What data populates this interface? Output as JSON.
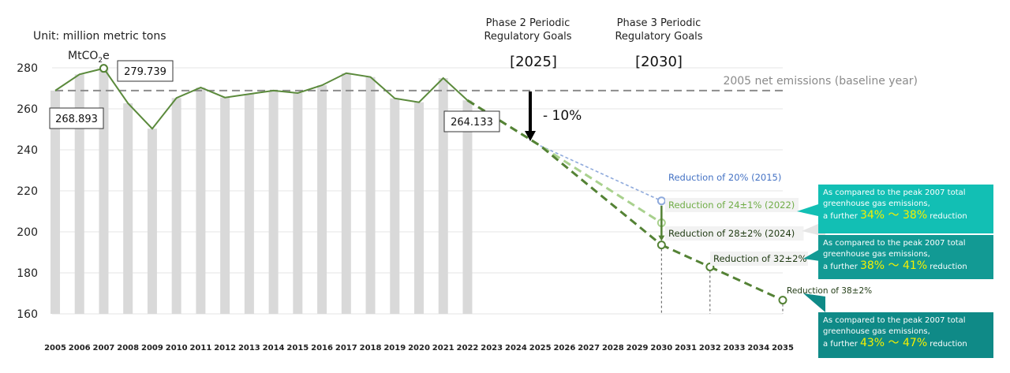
{
  "chart_data": {
    "type": "bar",
    "unit_label": "Unit: million metric tons",
    "unit_sub_prefix": "MtCO",
    "unit_sub_num": "2",
    "unit_sub_suffix": "e",
    "categories": [
      "2005",
      "2006",
      "2007",
      "2008",
      "2009",
      "2010",
      "2011",
      "2012",
      "2013",
      "2014",
      "2015",
      "2016",
      "2017",
      "2018",
      "2019",
      "2020",
      "2021",
      "2022",
      "2023",
      "2024",
      "2025",
      "2026",
      "2027",
      "2028",
      "2029",
      "2030",
      "2031",
      "2032",
      "2033",
      "2034",
      "2035"
    ],
    "y_ticks": [
      "280",
      "260",
      "240",
      "220",
      "200",
      "180",
      "160"
    ],
    "ylim": [
      160,
      285
    ],
    "historical": {
      "years": [
        "2005",
        "2006",
        "2007",
        "2008",
        "2009",
        "2010",
        "2011",
        "2012",
        "2013",
        "2014",
        "2015",
        "2016",
        "2017",
        "2018",
        "2019",
        "2020",
        "2021",
        "2022"
      ],
      "values": [
        268.893,
        276.8,
        279.739,
        262.7,
        250.3,
        265.3,
        270.4,
        265.5,
        267.2,
        268.9,
        267.7,
        271.5,
        277.4,
        275.5,
        265.1,
        263.2,
        275.0,
        264.133
      ]
    },
    "baseline_value": 268.893,
    "baseline_label": "2005 net emissions (baseline year)",
    "value_callouts": {
      "y2005": "268.893",
      "y2007": "279.739",
      "y2022": "264.133"
    },
    "phase2": {
      "line1": "Phase 2 Periodic",
      "line2": "Regulatory Goals",
      "year_label": "[2025]",
      "reduction_label": "- 10%",
      "target_value": 242.0
    },
    "phase3": {
      "line1": "Phase 3 Periodic",
      "line2": "Regulatory Goals",
      "year_label": "[2030]"
    },
    "series": [
      {
        "name": "Reduction of 20% (2015)",
        "color": "#8faadc",
        "points": [
          {
            "x": "2025",
            "y": 242.0
          },
          {
            "x": "2030",
            "y": 215.1
          }
        ]
      },
      {
        "name": "Reduction of 24±1% (2022)",
        "color": "#a9d18e",
        "points": [
          {
            "x": "2022",
            "y": 264.133
          },
          {
            "x": "2025",
            "y": 242.0
          },
          {
            "x": "2030",
            "y": 204.4
          }
        ]
      },
      {
        "name": "Reduction of 28±2%  (2024)",
        "color": "#548235",
        "points": [
          {
            "x": "2022",
            "y": 264.133
          },
          {
            "x": "2025",
            "y": 242.0
          },
          {
            "x": "2030",
            "y": 193.6
          }
        ]
      },
      {
        "name": "Reduction of 32±2%",
        "color": "#548235",
        "points": [
          {
            "x": "2030",
            "y": 193.6
          },
          {
            "x": "2032",
            "y": 182.9
          }
        ]
      },
      {
        "name": "Reduction of 38±2%",
        "color": "#548235",
        "points": [
          {
            "x": "2032",
            "y": 182.9
          },
          {
            "x": "2035",
            "y": 166.7
          }
        ]
      }
    ],
    "notes": [
      {
        "line1": "As compared to the peak 2007 total",
        "line2": "greenhouse gas emissions,",
        "prefix": "a further ",
        "range": "34% ～ 38%",
        "suffix": " reduction",
        "color": "#12bfb4"
      },
      {
        "line1": "As compared to the peak 2007 total",
        "line2": "greenhouse gas emissions,",
        "prefix": "a further ",
        "range": "38% ～ 41%",
        "suffix": " reduction",
        "color": "#129a94"
      },
      {
        "line1": "As compared to the peak 2007 total",
        "line2": "greenhouse gas emissions,",
        "prefix": "a further ",
        "range": "43% ～ 47%",
        "suffix": " reduction",
        "color": "#0f8a87"
      }
    ]
  }
}
